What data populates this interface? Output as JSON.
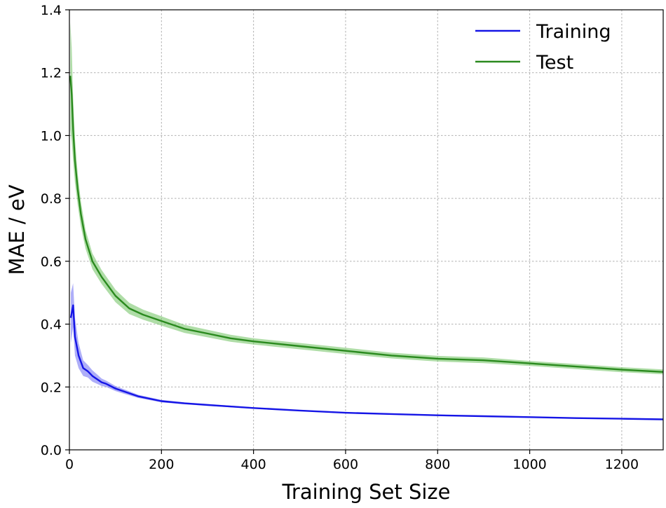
{
  "chart_data": {
    "type": "line",
    "title": "",
    "xlabel": "Training Set Size",
    "ylabel": "MAE / eV",
    "xlim": [
      0,
      1290
    ],
    "ylim": [
      0.0,
      1.4
    ],
    "xticks": [
      0,
      200,
      400,
      600,
      800,
      1000,
      1200
    ],
    "xtick_labels": [
      "0",
      "200",
      "400",
      "600",
      "800",
      "1000",
      "1200"
    ],
    "yticks": [
      0.0,
      0.2,
      0.4,
      0.6,
      0.8,
      1.0,
      1.2,
      1.4
    ],
    "ytick_labels": [
      "0.0",
      "0.2",
      "0.4",
      "0.6",
      "0.8",
      "1.0",
      "1.2",
      "1.4"
    ],
    "grid": true,
    "legend_position": "top-right",
    "series": [
      {
        "name": "Training",
        "color": "#1515e6",
        "band_color": "#6b6bf2",
        "x": [
          3,
          8,
          12,
          20,
          30,
          40,
          50,
          60,
          70,
          80,
          100,
          120,
          150,
          200,
          250,
          300,
          400,
          500,
          600,
          700,
          800,
          900,
          1000,
          1100,
          1200,
          1290
        ],
        "y": [
          0.42,
          0.46,
          0.36,
          0.3,
          0.26,
          0.25,
          0.235,
          0.225,
          0.215,
          0.21,
          0.195,
          0.185,
          0.17,
          0.155,
          0.148,
          0.143,
          0.133,
          0.125,
          0.118,
          0.114,
          0.11,
          0.107,
          0.104,
          0.101,
          0.099,
          0.097
        ],
        "band": [
          0.08,
          0.07,
          0.06,
          0.04,
          0.025,
          0.02,
          0.018,
          0.015,
          0.012,
          0.01,
          0.008,
          0.007,
          0.005,
          0.004,
          0.003,
          0.003,
          0.002,
          0.002,
          0.002,
          0.002,
          0.002,
          0.001,
          0.001,
          0.001,
          0.001,
          0.001
        ]
      },
      {
        "name": "Test",
        "color": "#2a8a1e",
        "band_color": "#6dc15f",
        "x": [
          2,
          5,
          8,
          12,
          18,
          25,
          35,
          50,
          70,
          100,
          130,
          160,
          200,
          250,
          300,
          350,
          400,
          500,
          600,
          700,
          800,
          900,
          1000,
          1100,
          1200,
          1290
        ],
        "y": [
          1.19,
          1.13,
          1.02,
          0.92,
          0.83,
          0.75,
          0.67,
          0.6,
          0.55,
          0.49,
          0.45,
          0.43,
          0.41,
          0.385,
          0.37,
          0.355,
          0.345,
          0.33,
          0.315,
          0.3,
          0.29,
          0.285,
          0.275,
          0.265,
          0.255,
          0.248
        ],
        "band": [
          0.17,
          0.15,
          0.1,
          0.07,
          0.05,
          0.04,
          0.03,
          0.025,
          0.022,
          0.02,
          0.018,
          0.016,
          0.015,
          0.013,
          0.012,
          0.011,
          0.01,
          0.01,
          0.01,
          0.009,
          0.009,
          0.009,
          0.008,
          0.008,
          0.008,
          0.008
        ]
      }
    ]
  }
}
